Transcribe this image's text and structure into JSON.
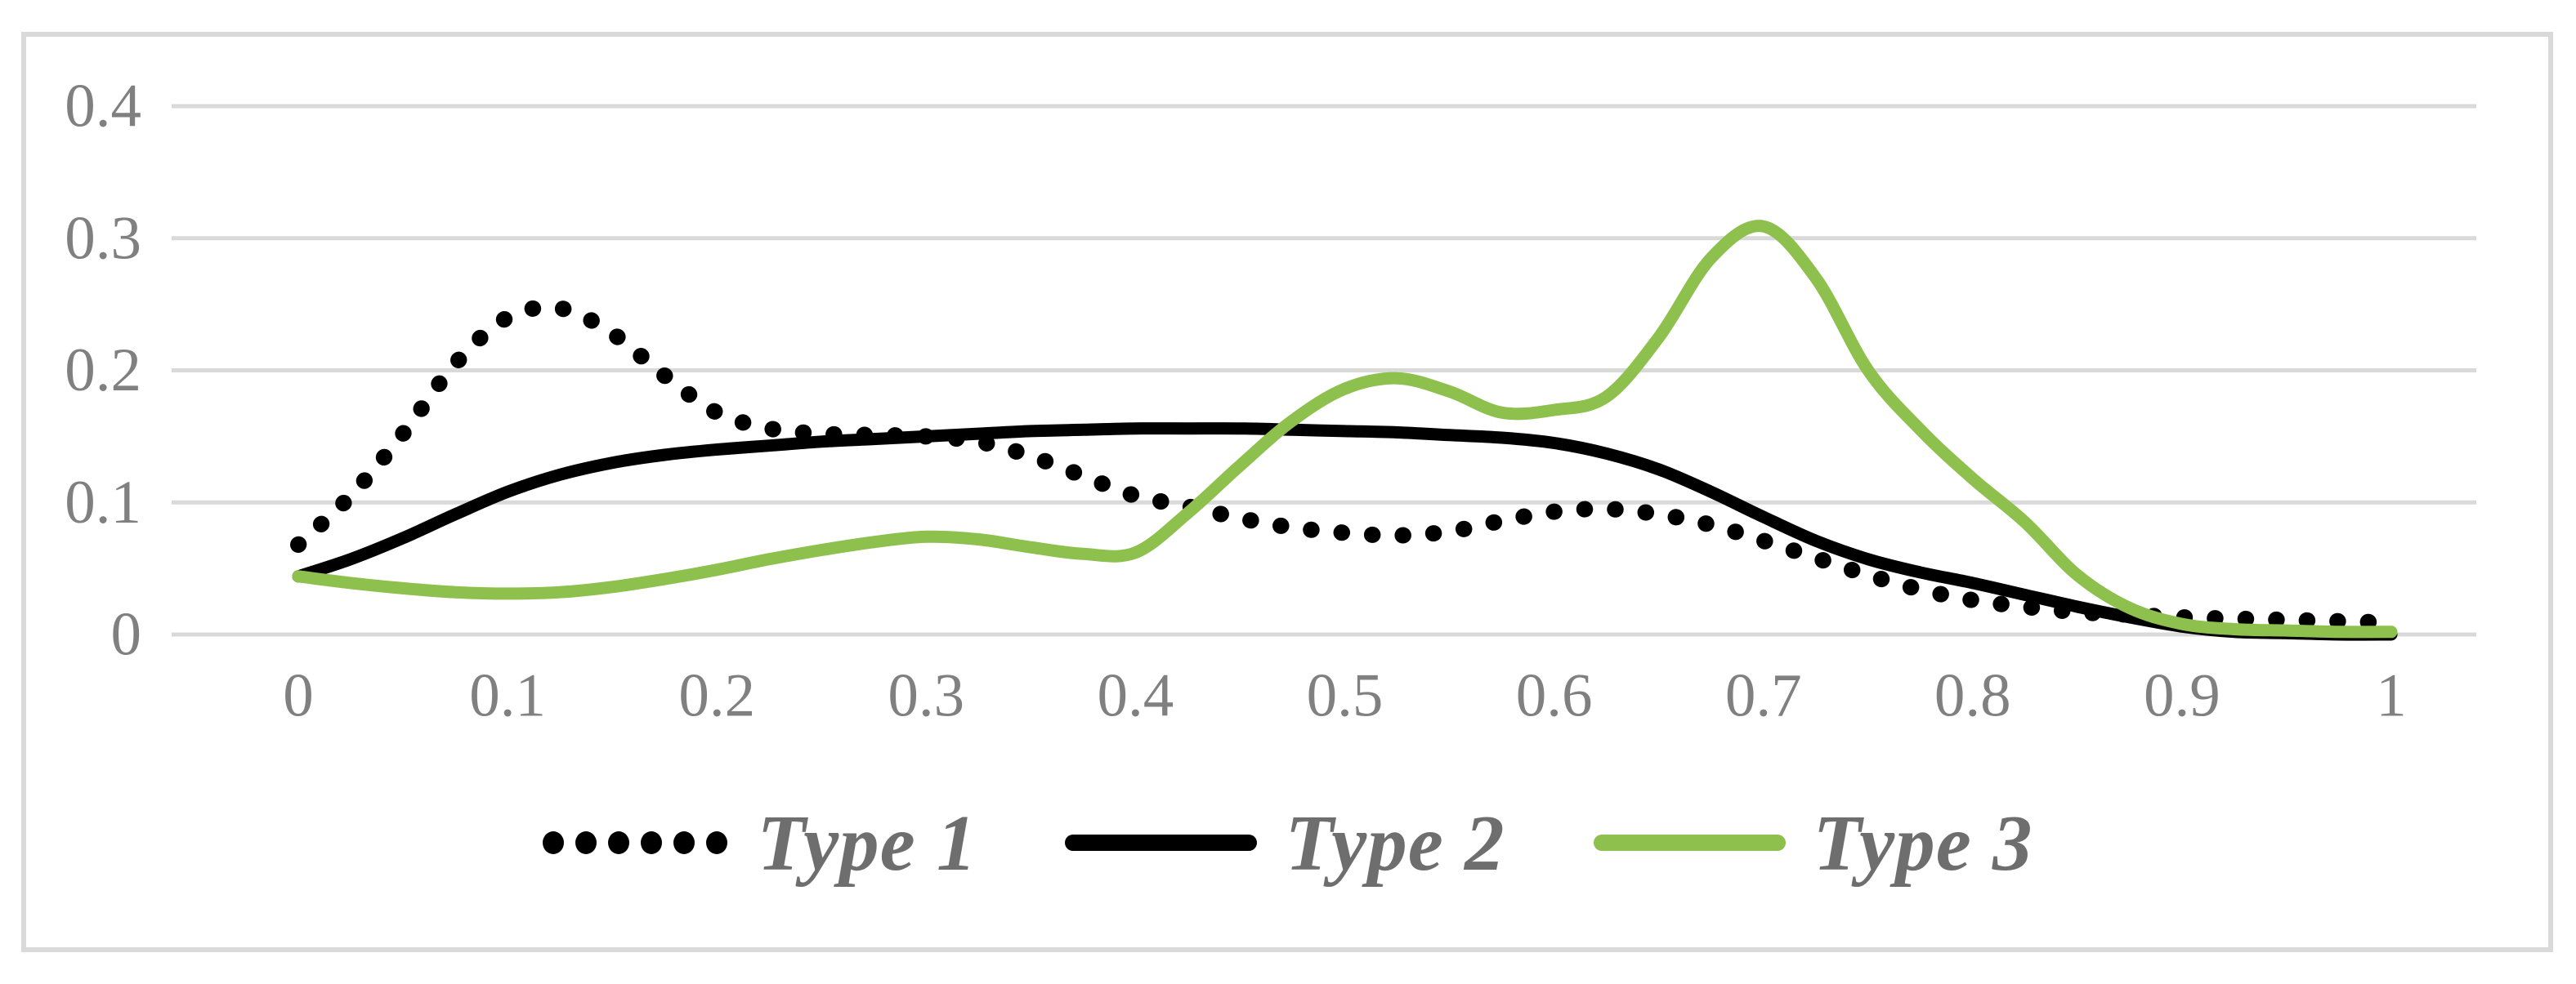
{
  "figure": {
    "background": "#FFFFFF",
    "frame_color": "#D9D9D9",
    "gridline_color": "#D9D9D9",
    "tick_label_color": "#808080",
    "legend_label_color": "#6E6E6E"
  },
  "chart_data": {
    "type": "line",
    "title": "",
    "xlabel": "",
    "ylabel": "",
    "grid": "horizontal-only",
    "legend_position": "bottom",
    "x_axis": {
      "range": [
        0,
        1
      ],
      "ticks": [
        0,
        0.1,
        0.2,
        0.3,
        0.4,
        0.5,
        0.6,
        0.7,
        0.8,
        0.9,
        1
      ],
      "tick_labels": [
        "0",
        "0.1",
        "0.2",
        "0.3",
        "0.4",
        "0.5",
        "0.6",
        "0.7",
        "0.8",
        "0.9",
        "1"
      ]
    },
    "y_axis": {
      "range": [
        0,
        0.4
      ],
      "ticks": [
        0,
        0.1,
        0.2,
        0.3,
        0.4
      ],
      "tick_labels": [
        "0",
        "0.1",
        "0.2",
        "0.3",
        "0.4"
      ]
    },
    "x": [
      0,
      0.025,
      0.05,
      0.075,
      0.1,
      0.125,
      0.15,
      0.175,
      0.2,
      0.225,
      0.25,
      0.275,
      0.3,
      0.325,
      0.35,
      0.375,
      0.4,
      0.425,
      0.45,
      0.475,
      0.5,
      0.525,
      0.55,
      0.575,
      0.6,
      0.625,
      0.65,
      0.675,
      0.7,
      0.725,
      0.75,
      0.775,
      0.8,
      0.825,
      0.85,
      0.875,
      0.9,
      0.925,
      0.95,
      0.975,
      1
    ],
    "series": [
      {
        "name": "Type 1",
        "line_style": "dotted",
        "color": "#000000",
        "values": [
          0.068,
          0.105,
          0.152,
          0.205,
          0.24,
          0.247,
          0.228,
          0.196,
          0.168,
          0.156,
          0.152,
          0.151,
          0.15,
          0.146,
          0.135,
          0.12,
          0.105,
          0.097,
          0.088,
          0.081,
          0.077,
          0.075,
          0.078,
          0.086,
          0.093,
          0.095,
          0.091,
          0.083,
          0.071,
          0.058,
          0.045,
          0.034,
          0.026,
          0.021,
          0.017,
          0.015,
          0.013,
          0.012,
          0.011,
          0.01,
          0.009
        ]
      },
      {
        "name": "Type 2",
        "line_style": "solid",
        "color": "#000000",
        "values": [
          0.044,
          0.057,
          0.073,
          0.091,
          0.108,
          0.121,
          0.13,
          0.136,
          0.14,
          0.143,
          0.146,
          0.148,
          0.15,
          0.152,
          0.154,
          0.155,
          0.156,
          0.156,
          0.156,
          0.155,
          0.154,
          0.153,
          0.151,
          0.149,
          0.145,
          0.137,
          0.125,
          0.108,
          0.089,
          0.071,
          0.057,
          0.047,
          0.039,
          0.03,
          0.021,
          0.013,
          0.006,
          0.002,
          0.001,
          0.0,
          0.0
        ]
      },
      {
        "name": "Type 3",
        "line_style": "solid",
        "color": "#8DC04D",
        "values": [
          0.044,
          0.039,
          0.035,
          0.032,
          0.031,
          0.032,
          0.036,
          0.042,
          0.049,
          0.057,
          0.064,
          0.07,
          0.074,
          0.072,
          0.066,
          0.061,
          0.062,
          0.092,
          0.128,
          0.162,
          0.186,
          0.194,
          0.184,
          0.168,
          0.17,
          0.18,
          0.225,
          0.285,
          0.309,
          0.27,
          0.2,
          0.155,
          0.118,
          0.085,
          0.045,
          0.02,
          0.008,
          0.004,
          0.003,
          0.002,
          0.002
        ]
      }
    ]
  }
}
